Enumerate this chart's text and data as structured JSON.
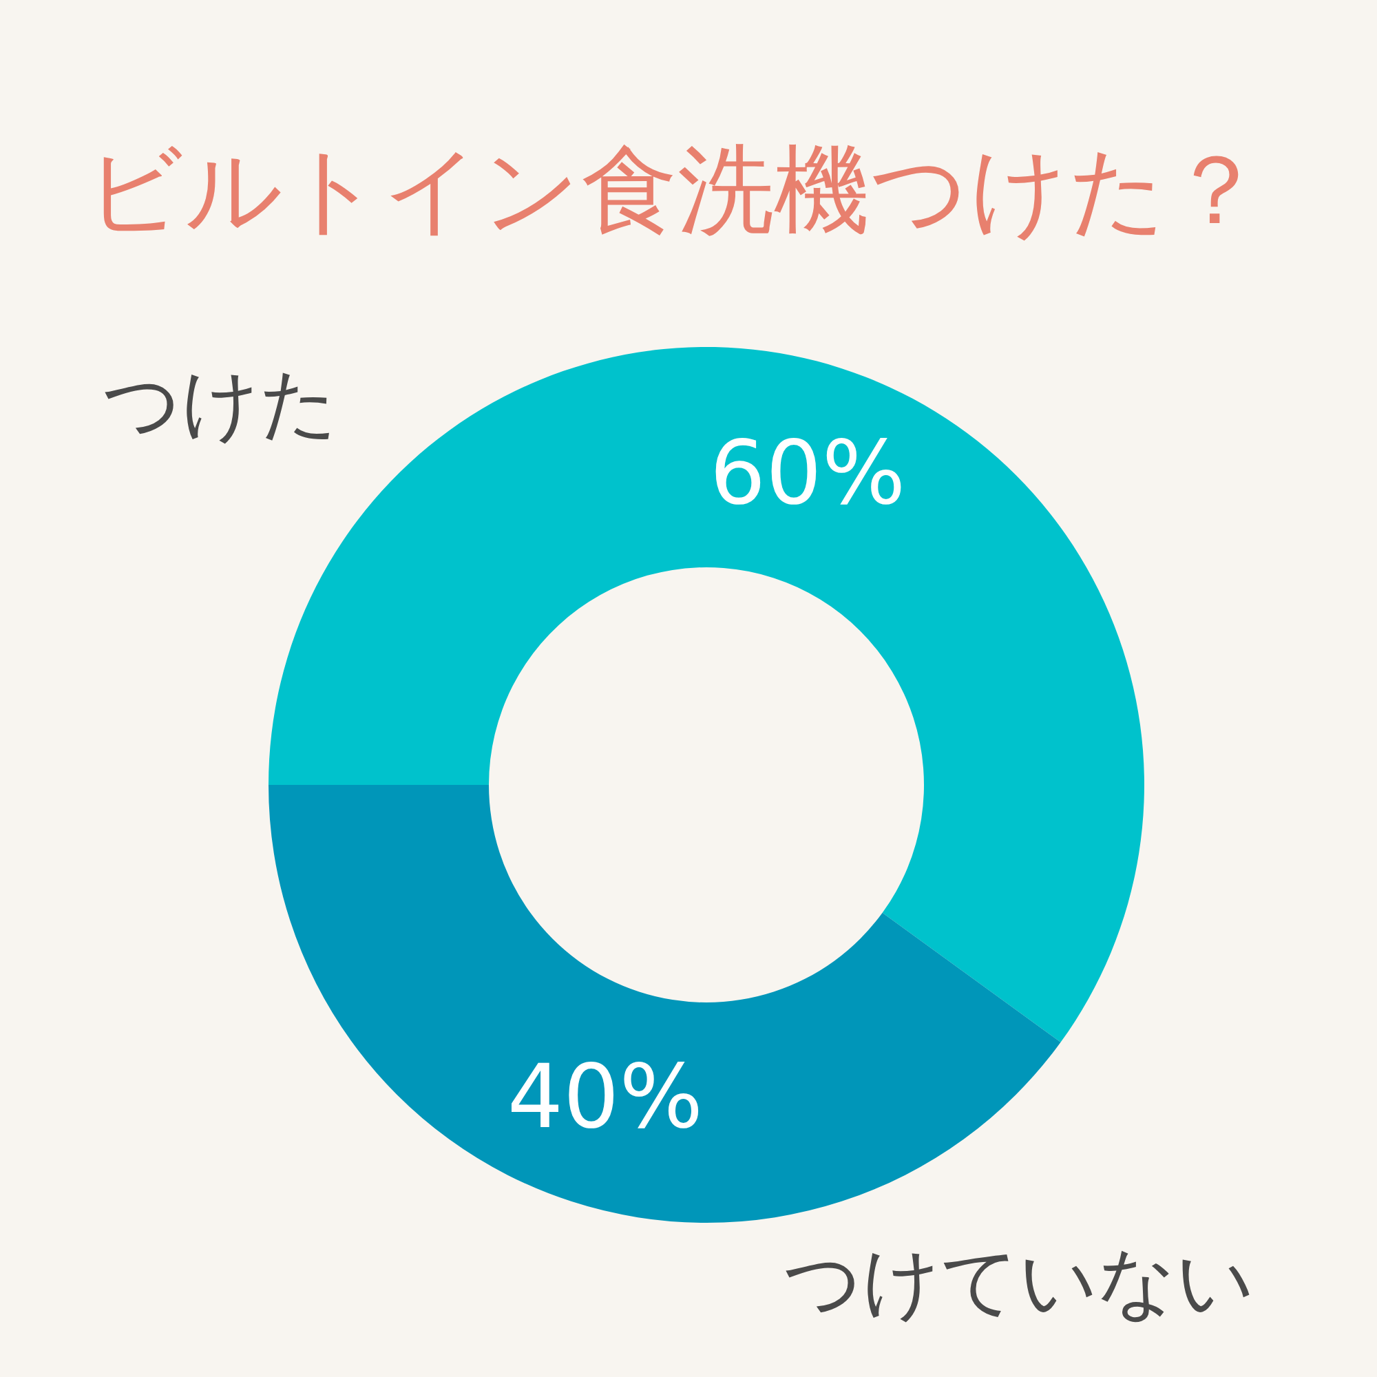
{
  "chart_data": {
    "type": "donut",
    "title": "ビルトイン食洗機つけた？",
    "categories": [
      "つけた",
      "つけていない"
    ],
    "values": [
      60,
      40
    ],
    "colors": [
      "#00c2cc",
      "#0096b9"
    ],
    "value_labels": [
      "60%",
      "40%"
    ]
  }
}
